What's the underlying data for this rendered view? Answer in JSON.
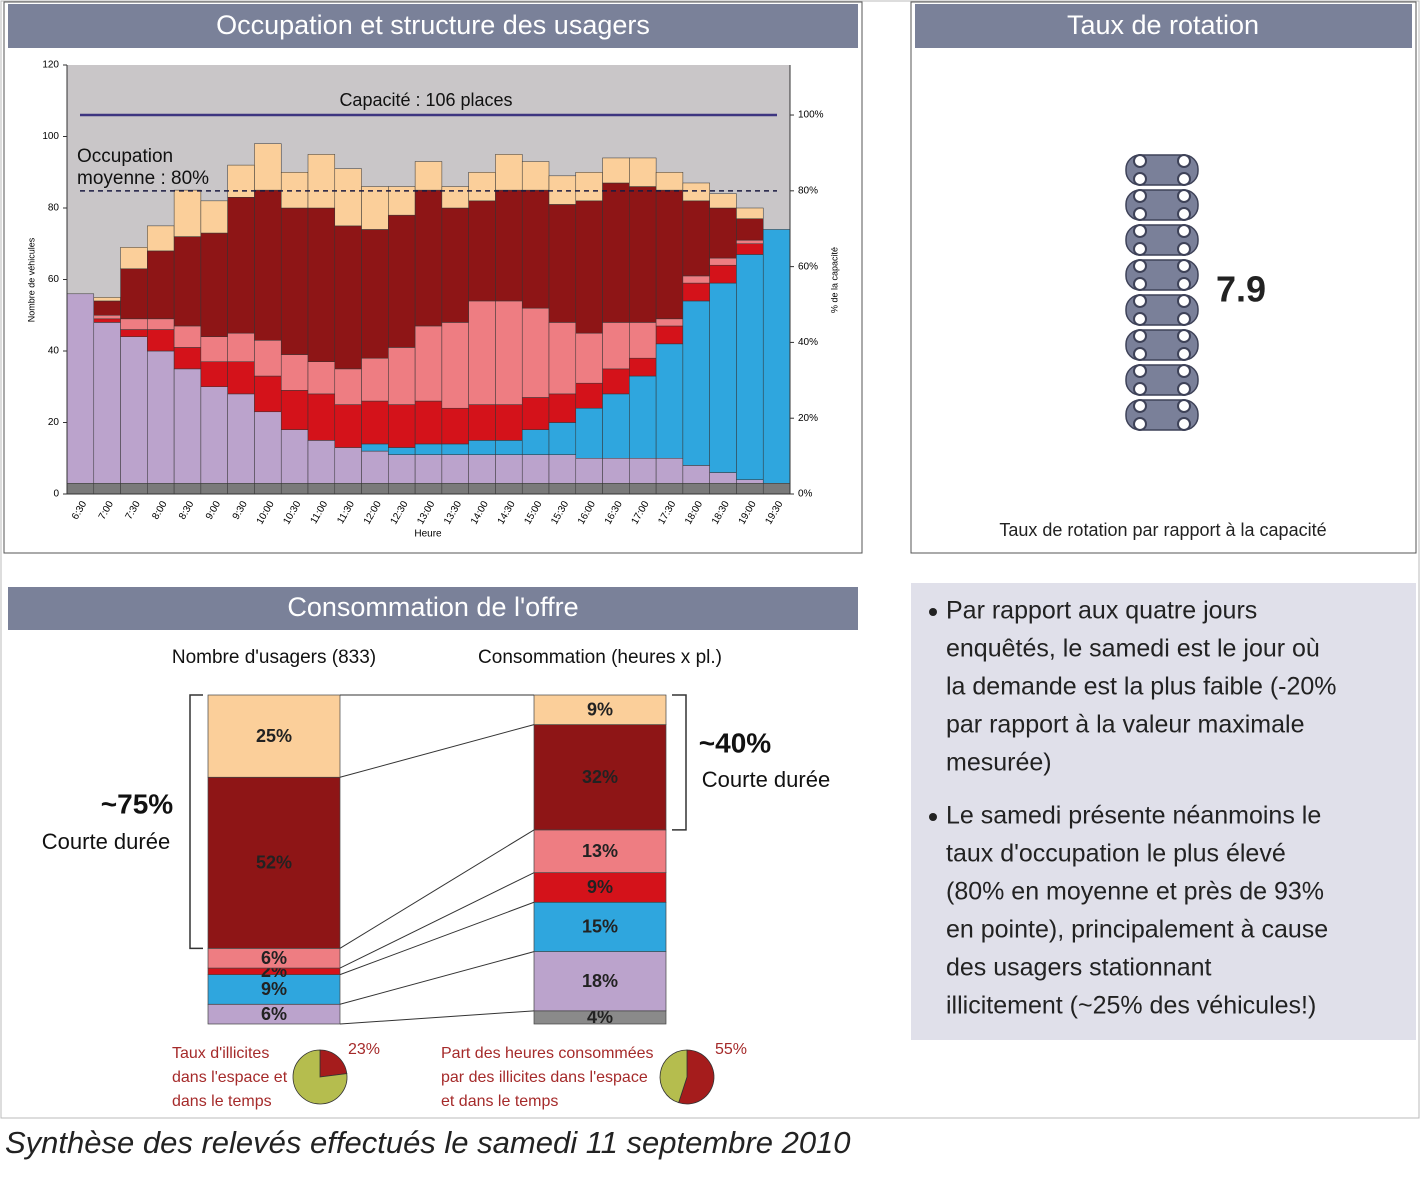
{
  "chart_data": [
    {
      "type": "bar",
      "stacked": true,
      "title": "Occupation et structure des usagers",
      "xlabel": "Heure",
      "ylabel": "Nombre de véhicules",
      "y2label": "% de la capacité",
      "background": "#c9c6c8",
      "categories": [
        "6:30",
        "7:00",
        "7:30",
        "8:00",
        "8:30",
        "9:00",
        "9:30",
        "10:00",
        "10:30",
        "11:00",
        "11:30",
        "12:00",
        "12:30",
        "13:00",
        "13:30",
        "14:00",
        "14:30",
        "15:00",
        "15:30",
        "16:00",
        "16:30",
        "17:00",
        "17:30",
        "18:00",
        "18:30",
        "19:00",
        "19:30"
      ],
      "ylim": [
        0,
        120
      ],
      "yticks": [
        0,
        20,
        40,
        60,
        80,
        100,
        120
      ],
      "y2lim": [
        0,
        113.2
      ],
      "y2ticks": [
        {
          "value": 0,
          "label": "0%"
        },
        {
          "value": 20,
          "label": "20%"
        },
        {
          "value": 40,
          "label": "40%"
        },
        {
          "value": 60,
          "label": "60%"
        },
        {
          "value": 80,
          "label": "80%"
        },
        {
          "value": 100,
          "label": "100%"
        }
      ],
      "series": [
        {
          "color": "#7a7a7a",
          "values": [
            3,
            3,
            3,
            3,
            3,
            3,
            3,
            3,
            3,
            3,
            3,
            3,
            3,
            3,
            3,
            3,
            3,
            3,
            3,
            3,
            3,
            3,
            3,
            3,
            3,
            3,
            3
          ]
        },
        {
          "color": "#bba3cc",
          "values": [
            53,
            45,
            41,
            37,
            32,
            27,
            25,
            20,
            15,
            12,
            10,
            9,
            8,
            8,
            8,
            8,
            8,
            8,
            8,
            7,
            7,
            7,
            7,
            5,
            3,
            1,
            0
          ]
        },
        {
          "color": "#2fa6de",
          "values": [
            0,
            0,
            0,
            0,
            0,
            0,
            0,
            0,
            0,
            0,
            0,
            2,
            2,
            3,
            3,
            4,
            4,
            7,
            9,
            14,
            18,
            23,
            32,
            46,
            53,
            63,
            71
          ]
        },
        {
          "color": "#d4121a",
          "values": [
            0,
            1,
            2,
            6,
            6,
            7,
            9,
            10,
            11,
            13,
            12,
            12,
            12,
            12,
            10,
            10,
            10,
            9,
            8,
            7,
            7,
            5,
            5,
            5,
            5,
            3,
            0
          ]
        },
        {
          "color": "#ee7d82",
          "values": [
            0,
            1,
            3,
            3,
            6,
            7,
            8,
            10,
            10,
            9,
            10,
            12,
            16,
            21,
            24,
            29,
            29,
            25,
            20,
            14,
            13,
            10,
            2,
            2,
            2,
            1,
            0
          ]
        },
        {
          "color": "#8e1516",
          "values": [
            0,
            4,
            14,
            19,
            25,
            29,
            38,
            42,
            41,
            43,
            40,
            36,
            37,
            38,
            32,
            28,
            31,
            33,
            33,
            37,
            39,
            38,
            36,
            21,
            14,
            6,
            0
          ]
        },
        {
          "color": "#fbcf9a",
          "values": [
            0,
            1,
            6,
            7,
            13,
            9,
            9,
            13,
            10,
            15,
            16,
            12,
            8,
            8,
            6,
            8,
            10,
            8,
            8,
            8,
            7,
            8,
            5,
            5,
            4,
            3,
            0
          ]
        }
      ],
      "reference_lines": [
        {
          "label": "Capacité : 106 places",
          "value": 106,
          "axis": "y",
          "color": "#3d3580",
          "dashed": false
        },
        {
          "label": [
            "Occupation",
            "moyenne : 80%"
          ],
          "value": 80,
          "axis": "y2",
          "color": "#1a1a40",
          "dashed": true
        }
      ]
    },
    {
      "type": "bar",
      "stacked": true,
      "title": "Consommation de l'offre",
      "categories": [
        "Nombre d'usagers (833)",
        "Consommation (heures x pl.)"
      ],
      "series": [
        {
          "color": "#8a8a8a",
          "values": [
            null,
            4
          ],
          "value_labels": [
            null,
            "4%"
          ]
        },
        {
          "color": "#bba3cc",
          "values": [
            6,
            18
          ],
          "value_labels": [
            "6%",
            "18%"
          ]
        },
        {
          "color": "#2fa6de",
          "values": [
            9,
            15
          ],
          "value_labels": [
            "9%",
            "15%"
          ]
        },
        {
          "color": "#d4121a",
          "values": [
            2,
            9
          ],
          "value_labels": [
            "2%",
            "9%"
          ]
        },
        {
          "color": "#ee7d82",
          "values": [
            6,
            13
          ],
          "value_labels": [
            "6%",
            "13%"
          ]
        },
        {
          "color": "#8e1516",
          "values": [
            52,
            32
          ],
          "value_labels": [
            "52%",
            "32%"
          ]
        },
        {
          "color": "#fbcf9a",
          "values": [
            25,
            9
          ],
          "value_labels": [
            "25%",
            "9%"
          ]
        }
      ],
      "annotations": [
        {
          "text": "~75%",
          "label": "Courte durée"
        },
        {
          "text": "~40%",
          "label": "Courte durée"
        }
      ]
    },
    {
      "type": "pie",
      "title": [
        "Taux d'illicites",
        "dans l'espace et",
        "dans le temps"
      ],
      "values": [
        23,
        77
      ],
      "value_labels": [
        "23%",
        null
      ],
      "colors": [
        "#a51c1c",
        "#b5bd4e"
      ]
    },
    {
      "type": "pie",
      "title": [
        "Part des heures consommées",
        "par des illicites dans l'espace",
        "et dans le temps"
      ],
      "values": [
        55,
        45
      ],
      "value_labels": [
        "55%",
        null
      ],
      "colors": [
        "#a51c1c",
        "#b5bd4e"
      ]
    }
  ],
  "rotation": {
    "title": "Taux de rotation",
    "value": 7.9,
    "caption": "Taux de rotation par rapport à la capacité"
  },
  "notes": {
    "bullets": [
      [
        "Par rapport aux quatre jours",
        "enquêtés, le samedi est le jour où",
        "la demande est la plus faible (-20%",
        "par rapport à la valeur maximale",
        "mesurée)"
      ],
      [
        "Le samedi présente néanmoins le",
        "taux d'occupation le plus élevé",
        "(80% en moyenne et près de 93%",
        "en pointe), principalement à cause",
        "des usagers stationnant",
        "illicitement (~25% des véhicules!)"
      ]
    ]
  },
  "footer": "Synthèse des relevés effectués le samedi 11 septembre 2010"
}
